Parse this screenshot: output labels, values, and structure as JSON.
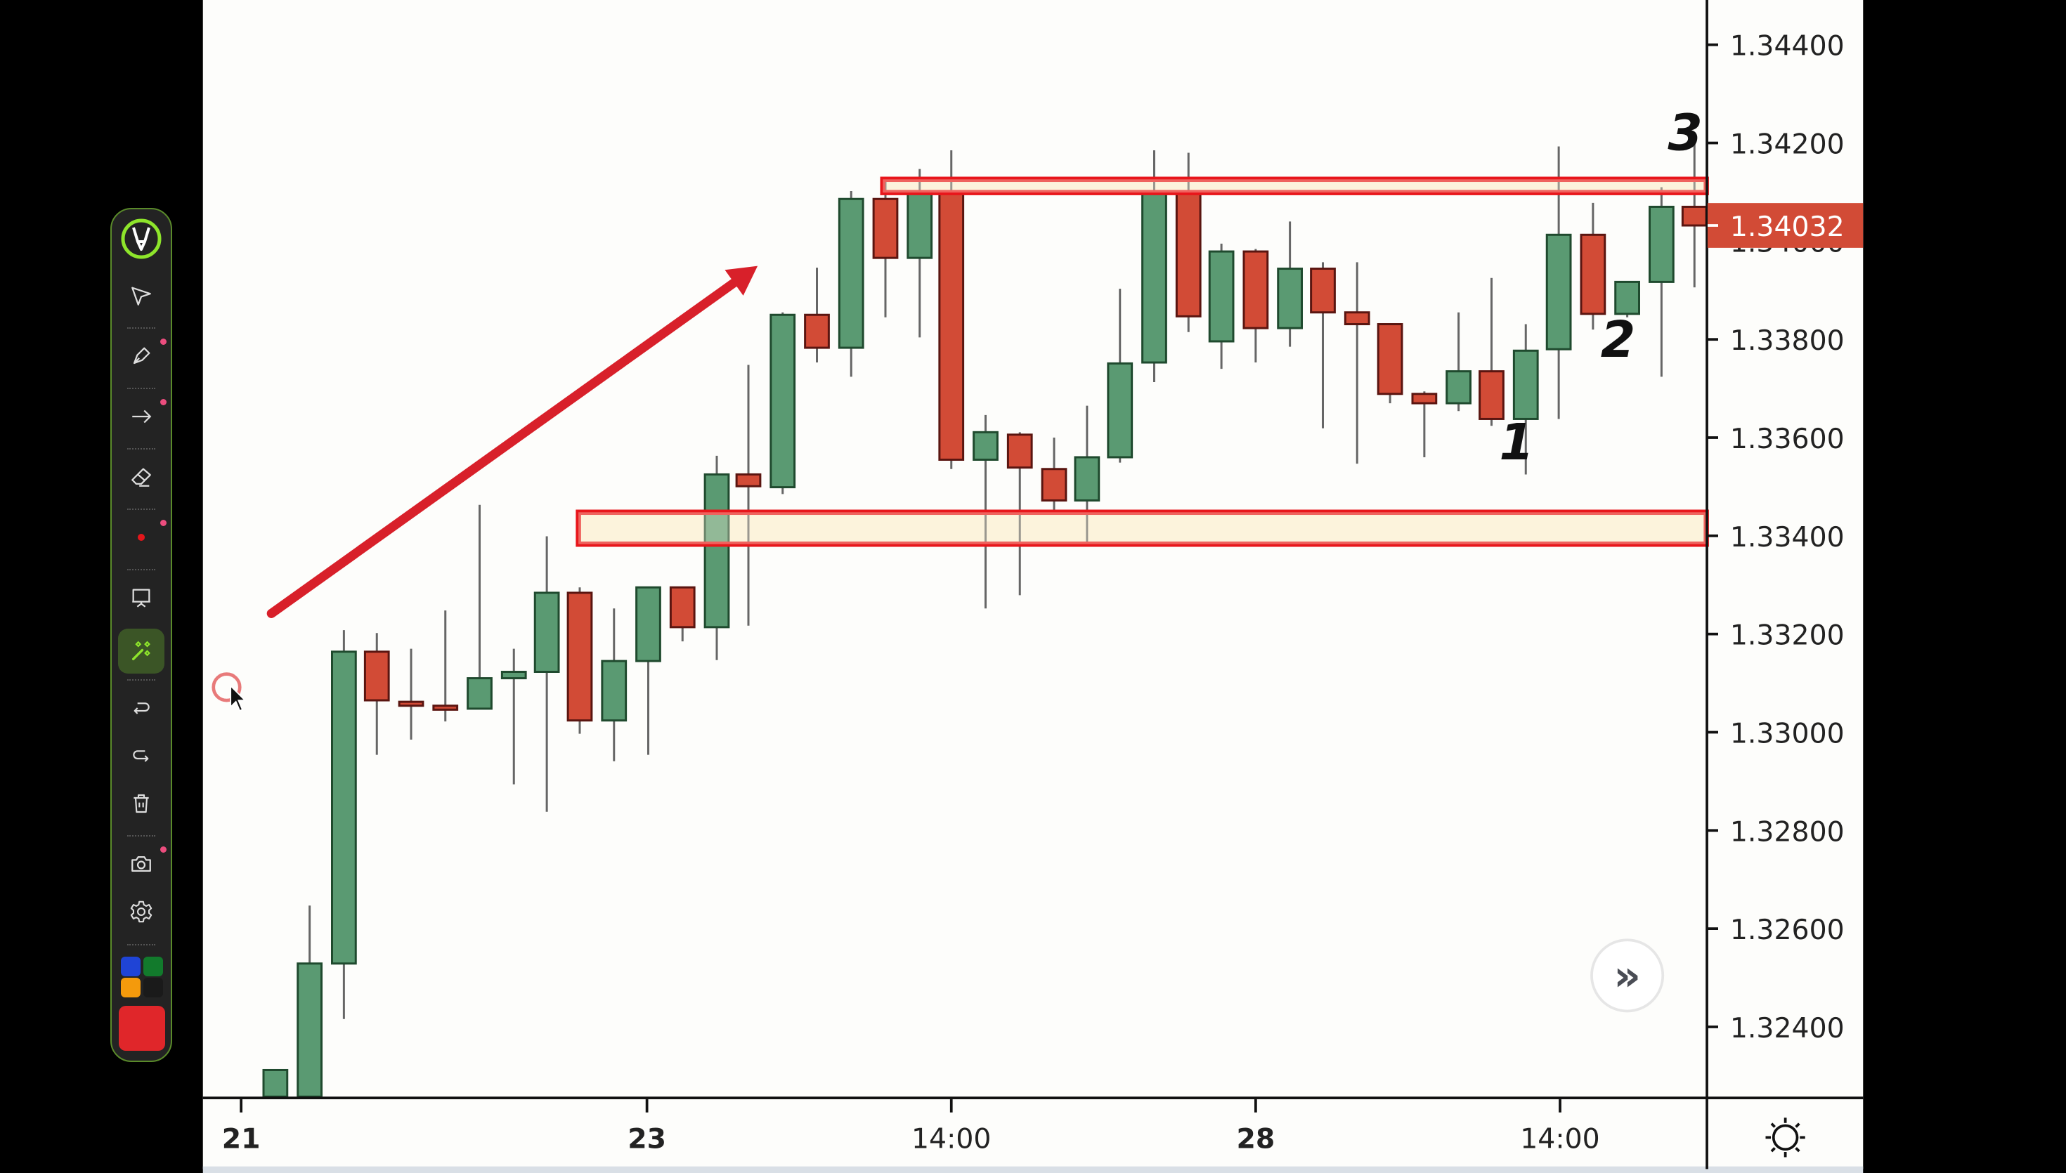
{
  "chart_data": {
    "type": "candlestick",
    "title": "",
    "xlabel": "",
    "ylabel": "",
    "ylim": [
      1.3226,
      1.3449
    ],
    "y_ticks": [
      "1.34400",
      "1.34200",
      "1.34000",
      "1.33800",
      "1.33600",
      "1.33400",
      "1.33200",
      "1.33000",
      "1.32800",
      "1.32600",
      "1.32400"
    ],
    "x_ticks": [
      {
        "label": "21",
        "x": 183
      },
      {
        "label": "23",
        "x": 491
      },
      {
        "label": "14:00",
        "x": 722
      },
      {
        "label": "28",
        "x": 953
      },
      {
        "label": "14:00",
        "x": 1184
      }
    ],
    "last_price": "1.34032",
    "colors": {
      "up": "#5a9a72",
      "down": "#d24b36",
      "up_border": "#1f4a2e",
      "down_border": "#5a1510",
      "wick": "#666666",
      "annotation": "#e8161b",
      "zone_fill": "#fcf3dc",
      "last_price_bg": "#d24b36"
    },
    "candles": [
      {
        "x": 209,
        "o": 1.32312,
        "h": 1.32312,
        "l": 1.32246,
        "c": 1.32246,
        "dir": "up"
      },
      {
        "x": 235,
        "o": 1.32246,
        "h": 1.32647,
        "l": 1.32246,
        "c": 1.32529,
        "dir": "up"
      },
      {
        "x": 261,
        "o": 1.32529,
        "h": 1.33208,
        "l": 1.32416,
        "c": 1.33164,
        "dir": "up"
      },
      {
        "x": 286,
        "o": 1.33164,
        "h": 1.33202,
        "l": 1.32954,
        "c": 1.33065,
        "dir": "down"
      },
      {
        "x": 312,
        "o": 1.33062,
        "h": 1.3317,
        "l": 1.32985,
        "c": 1.33056,
        "dir": "down"
      },
      {
        "x": 338,
        "o": 1.33054,
        "h": 1.33248,
        "l": 1.33022,
        "c": 1.33048,
        "dir": "down"
      },
      {
        "x": 364,
        "o": 1.33048,
        "h": 1.33463,
        "l": 1.33048,
        "c": 1.3311,
        "dir": "up"
      },
      {
        "x": 390,
        "o": 1.3311,
        "h": 1.3317,
        "l": 1.32894,
        "c": 1.33123,
        "dir": "up"
      },
      {
        "x": 415,
        "o": 1.33123,
        "h": 1.33399,
        "l": 1.32838,
        "c": 1.33284,
        "dir": "up"
      },
      {
        "x": 440,
        "o": 1.33284,
        "h": 1.33295,
        "l": 1.32997,
        "c": 1.33024,
        "dir": "down"
      },
      {
        "x": 466,
        "o": 1.33024,
        "h": 1.33252,
        "l": 1.32941,
        "c": 1.33145,
        "dir": "up"
      },
      {
        "x": 492,
        "o": 1.33145,
        "h": 1.33295,
        "l": 1.32954,
        "c": 1.33295,
        "dir": "up"
      },
      {
        "x": 518,
        "o": 1.33295,
        "h": 1.33295,
        "l": 1.33185,
        "c": 1.33214,
        "dir": "down"
      },
      {
        "x": 544,
        "o": 1.33214,
        "h": 1.33563,
        "l": 1.33147,
        "c": 1.33525,
        "dir": "up"
      },
      {
        "x": 568,
        "o": 1.33525,
        "h": 1.33748,
        "l": 1.33217,
        "c": 1.33501,
        "dir": "down"
      },
      {
        "x": 594,
        "o": 1.33499,
        "h": 1.33855,
        "l": 1.33485,
        "c": 1.3385,
        "dir": "up"
      },
      {
        "x": 620,
        "o": 1.3385,
        "h": 1.33946,
        "l": 1.33753,
        "c": 1.33783,
        "dir": "down"
      },
      {
        "x": 646,
        "o": 1.33783,
        "h": 1.34102,
        "l": 1.33724,
        "c": 1.34086,
        "dir": "up"
      },
      {
        "x": 672,
        "o": 1.34086,
        "h": 1.34131,
        "l": 1.33845,
        "c": 1.33966,
        "dir": "down"
      },
      {
        "x": 698,
        "o": 1.33966,
        "h": 1.34147,
        "l": 1.33804,
        "c": 1.34099,
        "dir": "up"
      },
      {
        "x": 722,
        "o": 1.34099,
        "h": 1.34185,
        "l": 1.33536,
        "c": 1.33555,
        "dir": "down"
      },
      {
        "x": 748,
        "o": 1.33555,
        "h": 1.33646,
        "l": 1.33252,
        "c": 1.33611,
        "dir": "up"
      },
      {
        "x": 774,
        "o": 1.33606,
        "h": 1.33611,
        "l": 1.33279,
        "c": 1.33539,
        "dir": "down"
      },
      {
        "x": 800,
        "o": 1.33536,
        "h": 1.336,
        "l": 1.33445,
        "c": 1.33472,
        "dir": "down"
      },
      {
        "x": 825,
        "o": 1.33472,
        "h": 1.33665,
        "l": 1.33386,
        "c": 1.3356,
        "dir": "up"
      },
      {
        "x": 850,
        "o": 1.3356,
        "h": 1.33903,
        "l": 1.33549,
        "c": 1.33751,
        "dir": "up"
      },
      {
        "x": 876,
        "o": 1.33753,
        "h": 1.34185,
        "l": 1.33713,
        "c": 1.34099,
        "dir": "up"
      },
      {
        "x": 902,
        "o": 1.34099,
        "h": 1.3418,
        "l": 1.33815,
        "c": 1.33847,
        "dir": "down"
      },
      {
        "x": 927,
        "o": 1.33796,
        "h": 1.33995,
        "l": 1.3374,
        "c": 1.33979,
        "dir": "up"
      },
      {
        "x": 953,
        "o": 1.33979,
        "h": 1.33984,
        "l": 1.33753,
        "c": 1.33823,
        "dir": "down"
      },
      {
        "x": 979,
        "o": 1.33823,
        "h": 1.3404,
        "l": 1.33785,
        "c": 1.33944,
        "dir": "up"
      },
      {
        "x": 1004,
        "o": 1.33944,
        "h": 1.33957,
        "l": 1.33619,
        "c": 1.33855,
        "dir": "down"
      },
      {
        "x": 1030,
        "o": 1.33855,
        "h": 1.33957,
        "l": 1.33547,
        "c": 1.33831,
        "dir": "down"
      },
      {
        "x": 1055,
        "o": 1.33831,
        "h": 1.3379,
        "l": 1.3367,
        "c": 1.33689,
        "dir": "down"
      },
      {
        "x": 1081,
        "o": 1.33689,
        "h": 1.33694,
        "l": 1.3356,
        "c": 1.3367,
        "dir": "down"
      },
      {
        "x": 1107,
        "o": 1.3367,
        "h": 1.33855,
        "l": 1.33654,
        "c": 1.33735,
        "dir": "up"
      },
      {
        "x": 1132,
        "o": 1.33735,
        "h": 1.33925,
        "l": 1.33624,
        "c": 1.33638,
        "dir": "down"
      },
      {
        "x": 1158,
        "o": 1.33638,
        "h": 1.33831,
        "l": 1.33525,
        "c": 1.33777,
        "dir": "up"
      },
      {
        "x": 1183,
        "o": 1.3378,
        "h": 1.34193,
        "l": 1.33638,
        "c": 1.34013,
        "dir": "up"
      },
      {
        "x": 1209,
        "o": 1.34013,
        "h": 1.34078,
        "l": 1.3382,
        "c": 1.33852,
        "dir": "down"
      },
      {
        "x": 1235,
        "o": 1.33852,
        "h": 1.33917,
        "l": 1.33845,
        "c": 1.33917,
        "dir": "up"
      },
      {
        "x": 1261,
        "o": 1.33917,
        "h": 1.3411,
        "l": 1.33724,
        "c": 1.3407,
        "dir": "up"
      },
      {
        "x": 1286,
        "o": 1.3407,
        "h": 1.34217,
        "l": 1.33906,
        "c": 1.34032,
        "dir": "down"
      }
    ],
    "annotations": [
      {
        "type": "zone",
        "name": "resistance-zone",
        "y_top": 1.34126,
        "y_bottom": 1.34099,
        "x_start": 670
      },
      {
        "type": "zone",
        "name": "support-zone",
        "y_top": 1.33448,
        "y_bottom": 1.33383,
        "x_start": 439
      },
      {
        "type": "arrow",
        "from": [
          206,
          466
        ],
        "to": [
          575,
          202
        ]
      },
      {
        "type": "label",
        "text": "1",
        "x": 1151,
        "y": 335
      },
      {
        "type": "label",
        "text": "2",
        "x": 1228,
        "y": 257
      },
      {
        "type": "label",
        "text": "3",
        "x": 1279,
        "y": 100
      }
    ]
  },
  "toolbar": {
    "items": [
      {
        "name": "logo",
        "label": "Logo"
      },
      {
        "name": "select",
        "label": "Select"
      },
      {
        "name": "pen",
        "label": "Pen"
      },
      {
        "name": "arrow",
        "label": "Arrow"
      },
      {
        "name": "eraser",
        "label": "Eraser"
      },
      {
        "name": "laser-dot",
        "label": "Laser"
      },
      {
        "name": "whiteboard",
        "label": "Whiteboard"
      },
      {
        "name": "magic",
        "label": "Magic"
      },
      {
        "name": "undo",
        "label": "Undo"
      },
      {
        "name": "redo",
        "label": "Redo"
      },
      {
        "name": "delete",
        "label": "Clear"
      },
      {
        "name": "screenshot",
        "label": "Screenshot"
      },
      {
        "name": "settings",
        "label": "Settings"
      }
    ],
    "swatches": [
      "#1f44d6",
      "#127a2c",
      "#f49a0c",
      "#1a1a1a"
    ],
    "active_color": "#e0262a"
  },
  "chart_controls": {
    "scroll_to_latest": "»",
    "theme_toggle": "sun"
  }
}
